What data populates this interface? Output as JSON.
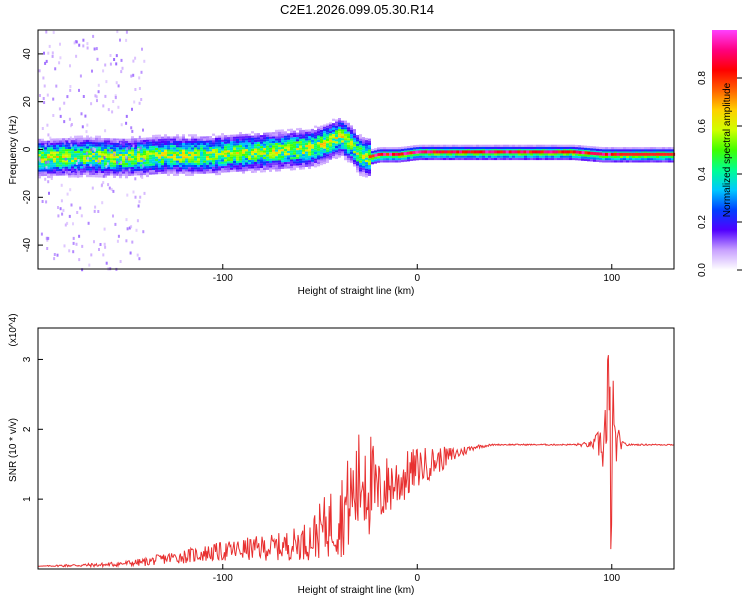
{
  "chart_data": [
    {
      "type": "heatmap",
      "title": "C2E1.2026.099.05.30.R14",
      "xlabel": "Height of straight line (km)",
      "ylabel": "Frequency (Hz)",
      "xlim": [
        -195,
        132
      ],
      "ylim": [
        -50,
        50
      ],
      "xticks": [
        -100,
        0,
        100
      ],
      "yticks": [
        -40,
        -20,
        0,
        20,
        40
      ],
      "colorbar": {
        "label": "Normalized spectral amplitude",
        "range": [
          0,
          1
        ],
        "ticks": [
          0.0,
          0.2,
          0.4,
          0.6,
          0.8
        ],
        "tick_labels": [
          "0.0",
          "0.2",
          "0.4",
          "0.6",
          "0.8"
        ],
        "colormap": [
          "#ffffff",
          "#c8a0ff",
          "#5000ff",
          "#0040ff",
          "#00c8ff",
          "#00ff90",
          "#40ff00",
          "#d0ff00",
          "#ffd000",
          "#ff6000",
          "#ff0000",
          "#ff0080",
          "#ff40ff"
        ]
      },
      "ridge": {
        "x": [
          -195,
          -170,
          -150,
          -130,
          -110,
          -90,
          -70,
          -55,
          -45,
          -40,
          -35,
          -30,
          -25,
          -20,
          -10,
          0,
          20,
          50,
          80,
          95,
          100,
          105,
          120,
          132
        ],
        "frequency_hz": [
          -3,
          -2.5,
          -3,
          -2,
          -2,
          -1,
          0,
          1,
          4,
          6,
          3,
          -2,
          -3,
          -2,
          -2,
          -1,
          -1,
          -1,
          -1,
          -2,
          -2,
          -2,
          -2,
          -2
        ]
      }
    },
    {
      "type": "line",
      "xlabel": "Height of straight line (km)",
      "ylabel": "SNR (10 * v/v)",
      "scale_label": "(x10^4)",
      "xlim": [
        -195,
        132
      ],
      "ylim": [
        0,
        3.45
      ],
      "xticks": [
        -100,
        0,
        100
      ],
      "yticks": [
        1,
        2,
        3
      ],
      "series": [
        {
          "name": "SNR",
          "color": "#e83030",
          "x": [
            -195,
            -180,
            -160,
            -150,
            -140,
            -130,
            -120,
            -110,
            -100,
            -90,
            -80,
            -70,
            -60,
            -55,
            -50,
            -45,
            -40,
            -35,
            -30,
            -27,
            -25,
            -22,
            -20,
            -15,
            -10,
            -5,
            0,
            5,
            10,
            20,
            30,
            40,
            60,
            80,
            90,
            95,
            98,
            100,
            102,
            105,
            110,
            120,
            132
          ],
          "y": [
            0.04,
            0.05,
            0.06,
            0.08,
            0.1,
            0.15,
            0.18,
            0.22,
            0.25,
            0.28,
            0.3,
            0.32,
            0.38,
            0.42,
            0.55,
            0.65,
            0.75,
            0.95,
            1.2,
            1.45,
            1.3,
            1.1,
            1.05,
            1.2,
            1.25,
            1.35,
            1.45,
            1.5,
            1.55,
            1.65,
            1.75,
            1.78,
            1.78,
            1.78,
            1.78,
            1.8,
            1.9,
            1.5,
            1.8,
            1.78,
            1.78,
            1.78,
            1.78
          ],
          "noise": [
            0,
            0.02,
            0.03,
            0.04,
            0.06,
            0.08,
            0.1,
            0.12,
            0.14,
            0.16,
            0.18,
            0.2,
            0.25,
            0.3,
            0.4,
            0.5,
            0.6,
            0.7,
            0.8,
            1.0,
            0.9,
            0.6,
            0.5,
            0.45,
            0.4,
            0.35,
            0.3,
            0.25,
            0.2,
            0.1,
            0.03,
            0.01,
            0.01,
            0.01,
            0.05,
            0.3,
            1.5,
            1.6,
            0.4,
            0.05,
            0.01,
            0.01,
            0.01
          ]
        }
      ]
    }
  ],
  "colors": {
    "line": "#e83030",
    "axis": "#000000",
    "background": "#ffffff"
  }
}
